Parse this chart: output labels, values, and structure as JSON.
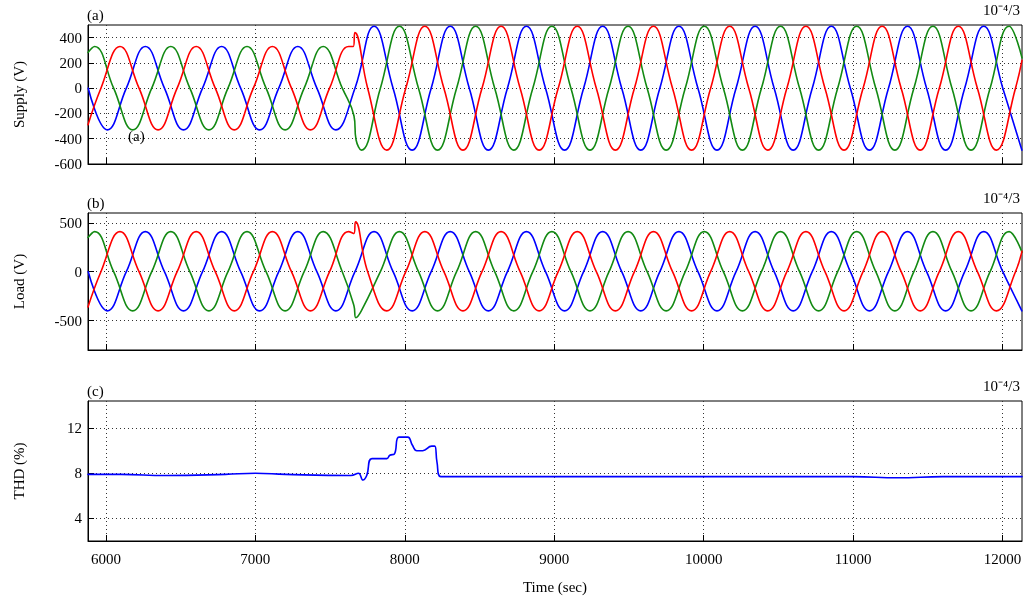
{
  "chart_data": [
    {
      "type": "line",
      "title": "(a)",
      "ylabel": "Supply (V)",
      "annotations": [
        "10⁻⁴/3",
        "(a)"
      ],
      "xlim": [
        5880,
        12130
      ],
      "xticks": [
        6000,
        7000,
        8000,
        9000,
        10000,
        11000,
        12000
      ],
      "ylim": [
        -600,
        500
      ],
      "yticks": [
        -600,
        -400,
        -200,
        0,
        200,
        400
      ],
      "grid": true,
      "tick_labels": "y",
      "marker": "none",
      "line_style": "solid",
      "series": [
        {
          "color": "#0000ff",
          "x": [
            5881.5,
            6009,
            6136.5,
            6264,
            6391.5,
            6519,
            6646.5,
            6774,
            6901.5,
            7029,
            7156.5,
            7284,
            7411.5,
            7539,
            7666.5,
            7794,
            7921.5,
            8049,
            8176.5,
            8304,
            8431.5,
            8559,
            8686.5,
            8814,
            8941.5,
            9069,
            9196.5,
            9324,
            9451.5,
            9579,
            9706.5,
            9834,
            9961.5,
            10089,
            10216.5,
            10344,
            10471.5,
            10599,
            10726.5,
            10854,
            10981.5,
            11109,
            11236.5,
            11364,
            11491.5,
            11619,
            11746.5,
            11874,
            12001.5,
            12129
          ],
          "values": [
            0,
            -330,
            0,
            330,
            0,
            -330,
            0,
            330,
            0,
            -330,
            0,
            330,
            0,
            -330,
            0,
            490,
            0,
            -490,
            0,
            490,
            0,
            -490,
            0,
            490,
            0,
            -490,
            0,
            490,
            0,
            -490,
            0,
            490,
            0,
            -490,
            0,
            490,
            0,
            -490,
            0,
            490,
            0,
            -490,
            0,
            490,
            0,
            -490,
            0,
            490,
            0,
            -490
          ]
        },
        {
          "color": "#138a13",
          "x": [
            5880,
            5924,
            6051.5,
            6179,
            6306.5,
            6434,
            6561.5,
            6689,
            6816.5,
            6944,
            7071.5,
            7199,
            7326.5,
            7454,
            7581.5,
            7660,
            7674,
            7709,
            7836.5,
            7964,
            8091.5,
            8219,
            8346.5,
            8474,
            8601.5,
            8729,
            8856.5,
            8984,
            9111.5,
            9239,
            9366.5,
            9494,
            9621.5,
            9749,
            9876.5,
            10004,
            10131.5,
            10259,
            10386.5,
            10514,
            10641.5,
            10769,
            10896.5,
            11024,
            11151.5,
            11279,
            11406.5,
            11534,
            11661.5,
            11789,
            11916.5,
            12044,
            12130
          ],
          "values": [
            283,
            330,
            0,
            -330,
            0,
            330,
            0,
            -330,
            0,
            330,
            0,
            -330,
            0,
            330,
            0,
            -220,
            -410,
            -490,
            0,
            490,
            0,
            -490,
            0,
            490,
            0,
            -490,
            0,
            490,
            0,
            -490,
            0,
            490,
            0,
            -490,
            0,
            490,
            0,
            -490,
            0,
            490,
            0,
            -490,
            0,
            490,
            0,
            -490,
            0,
            490,
            0,
            -490,
            0,
            490,
            240
          ]
        },
        {
          "color": "#ff0000",
          "x": [
            5880,
            5966.5,
            6094,
            6221.5,
            6349,
            6476.5,
            6604,
            6731.5,
            6859,
            6986.5,
            7114,
            7241.5,
            7369,
            7496.5,
            7624,
            7655,
            7666,
            7751.5,
            7879,
            8006.5,
            8134,
            8261.5,
            8389,
            8516.5,
            8644,
            8771.5,
            8899,
            9026.5,
            9154,
            9281.5,
            9409,
            9536.5,
            9664,
            9791.5,
            9919,
            10046.5,
            10174,
            10301.5,
            10429,
            10556.5,
            10684,
            10811.5,
            10939,
            11066.5,
            11194,
            11321.5,
            11449,
            11576.5,
            11704,
            11831.5,
            11959,
            12086.5,
            12130
          ],
          "values": [
            -289,
            0,
            330,
            0,
            -330,
            0,
            330,
            0,
            -330,
            0,
            330,
            0,
            -330,
            0,
            330,
            330,
            440,
            0,
            -490,
            0,
            490,
            0,
            -490,
            0,
            490,
            0,
            -490,
            0,
            490,
            0,
            -490,
            0,
            490,
            0,
            -490,
            0,
            490,
            0,
            -490,
            0,
            490,
            0,
            -490,
            0,
            490,
            0,
            -490,
            0,
            490,
            0,
            -490,
            0,
            220
          ]
        }
      ]
    },
    {
      "type": "line",
      "title": "(b)",
      "ylabel": "Load (V)",
      "annotations": [
        "10⁻⁴/3"
      ],
      "xlim": [
        5880,
        12130
      ],
      "xticks": [
        6000,
        7000,
        8000,
        9000,
        10000,
        11000,
        12000
      ],
      "ylim": [
        -800,
        600
      ],
      "yticks": [
        -500,
        0,
        500
      ],
      "grid": true,
      "tick_labels": "y",
      "marker": "none",
      "line_style": "solid",
      "series": [
        {
          "color": "#0000ff",
          "x": [
            5881.5,
            6009,
            6136.5,
            6264,
            6391.5,
            6519,
            6646.5,
            6774,
            6901.5,
            7029,
            7156.5,
            7284,
            7411.5,
            7539,
            7666.5,
            7794,
            7921.5,
            8049,
            8176.5,
            8304,
            8431.5,
            8559,
            8686.5,
            8814,
            8941.5,
            9069,
            9196.5,
            9324,
            9451.5,
            9579,
            9706.5,
            9834,
            9961.5,
            10089,
            10216.5,
            10344,
            10471.5,
            10599,
            10726.5,
            10854,
            10981.5,
            11109,
            11236.5,
            11364,
            11491.5,
            11619,
            11746.5,
            11874,
            12001.5,
            12129
          ],
          "values": [
            0,
            -400,
            0,
            410,
            0,
            -400,
            0,
            410,
            0,
            -400,
            0,
            410,
            0,
            -400,
            0,
            410,
            0,
            -400,
            0,
            410,
            0,
            -400,
            0,
            410,
            0,
            -400,
            0,
            410,
            0,
            -400,
            0,
            410,
            0,
            -400,
            0,
            410,
            0,
            -400,
            0,
            410,
            0,
            -400,
            0,
            410,
            0,
            -400,
            0,
            410,
            0,
            -400
          ]
        },
        {
          "color": "#138a13",
          "x": [
            5880,
            5924,
            6051.5,
            6179,
            6306.5,
            6434,
            6561.5,
            6689,
            6816.5,
            6944,
            7071.5,
            7199,
            7326.5,
            7454,
            7581.5,
            7660,
            7672,
            7709,
            7836.5,
            7964,
            8091.5,
            8219,
            8346.5,
            8474,
            8601.5,
            8729,
            8856.5,
            8984,
            9111.5,
            9239,
            9366.5,
            9494,
            9621.5,
            9749,
            9876.5,
            10004,
            10131.5,
            10259,
            10386.5,
            10514,
            10641.5,
            10769,
            10896.5,
            11024,
            11151.5,
            11279,
            11406.5,
            11534,
            11661.5,
            11789,
            11916.5,
            12044,
            12130
          ],
          "values": [
            350,
            410,
            0,
            -400,
            0,
            410,
            0,
            -400,
            0,
            410,
            0,
            -400,
            0,
            410,
            0,
            -350,
            -470,
            -400,
            0,
            410,
            0,
            -400,
            0,
            410,
            0,
            -400,
            0,
            410,
            0,
            -400,
            0,
            410,
            0,
            -400,
            0,
            410,
            0,
            -400,
            0,
            410,
            0,
            -400,
            0,
            410,
            0,
            -400,
            0,
            410,
            0,
            -400,
            0,
            410,
            200
          ]
        },
        {
          "color": "#ff0000",
          "x": [
            5880,
            5966.5,
            6094,
            6221.5,
            6349,
            6476.5,
            6604,
            6731.5,
            6859,
            6986.5,
            7114,
            7241.5,
            7369,
            7496.5,
            7624,
            7660,
            7670,
            7751.5,
            7879,
            8006.5,
            8134,
            8261.5,
            8389,
            8516.5,
            8644,
            8771.5,
            8899,
            9026.5,
            9154,
            9281.5,
            9409,
            9536.5,
            9664,
            9791.5,
            9919,
            10046.5,
            10174,
            10301.5,
            10429,
            10556.5,
            10684,
            10811.5,
            10939,
            11066.5,
            11194,
            11321.5,
            11449,
            11576.5,
            11704,
            11831.5,
            11959,
            12086.5,
            12130
          ],
          "values": [
            -360,
            0,
            410,
            0,
            -400,
            0,
            410,
            0,
            -400,
            0,
            410,
            0,
            -400,
            0,
            410,
            390,
            510,
            0,
            -400,
            0,
            410,
            0,
            -400,
            0,
            410,
            0,
            -400,
            0,
            410,
            0,
            -400,
            0,
            410,
            0,
            -400,
            0,
            410,
            0,
            -400,
            0,
            410,
            0,
            -400,
            0,
            410,
            0,
            -400,
            0,
            410,
            0,
            -400,
            0,
            210
          ]
        }
      ]
    },
    {
      "type": "line",
      "title": "(c)",
      "xlabel": "Time (sec)",
      "ylabel": "THD (%)",
      "annotations": [
        "10⁻⁴/3"
      ],
      "xlim": [
        5880,
        12130
      ],
      "xticks": [
        6000,
        7000,
        8000,
        9000,
        10000,
        11000,
        12000
      ],
      "ylim": [
        2,
        14.4
      ],
      "yticks": [
        4,
        8,
        12
      ],
      "grid": true,
      "marker": "none",
      "line_style": "solid",
      "series": [
        {
          "color": "#0000ff",
          "x": [
            5880,
            6100,
            6400,
            6800,
            7000,
            7200,
            7640,
            7690,
            7720,
            7745,
            7780,
            7880,
            7900,
            7930,
            7960,
            8020,
            8050,
            8080,
            8120,
            8180,
            8200,
            8215,
            8240,
            8600,
            9000,
            10000,
            11000,
            11300,
            11600,
            12130
          ],
          "values": [
            7.9,
            7.9,
            7.8,
            7.9,
            8.0,
            7.9,
            7.8,
            8.0,
            7.4,
            7.8,
            9.3,
            9.3,
            9.6,
            9.7,
            11.2,
            11.2,
            10.5,
            10.0,
            10.0,
            10.4,
            10.4,
            9.0,
            7.7,
            7.7,
            7.7,
            7.7,
            7.7,
            7.6,
            7.7,
            7.7
          ]
        }
      ]
    }
  ]
}
